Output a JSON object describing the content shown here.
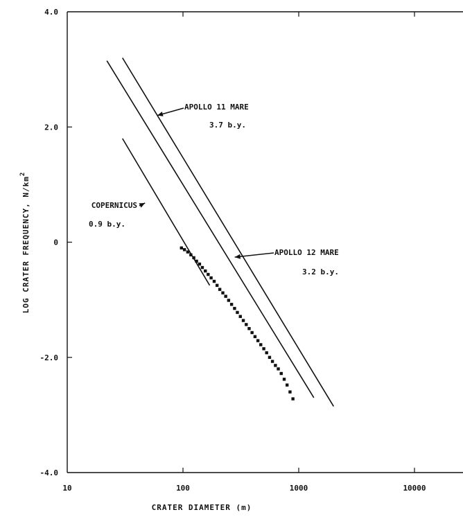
{
  "chart_data": {
    "type": "line",
    "title": "",
    "xlabel": "CRATER DIAMETER (m)",
    "ylabel": "LOG CRATER FREQUENCY, N/km",
    "ylabel_superscript": "2",
    "x_scale": "log",
    "xlim": [
      10,
      30000
    ],
    "ylim": [
      -4.0,
      4.0
    ],
    "x_ticks": [
      10,
      100,
      1000,
      10000
    ],
    "x_tick_labels": [
      "10",
      "100",
      "1000",
      "10000"
    ],
    "y_ticks": [
      4.0,
      2.0,
      0,
      -2.0,
      -4.0
    ],
    "y_tick_labels": [
      "4.0",
      "2.0",
      "0",
      "-2.0",
      "-4.0"
    ],
    "grid": false,
    "legend": "none",
    "series": [
      {
        "name": "APOLLO 11 MARE",
        "style": "line",
        "x": [
          30,
          2000
        ],
        "y": [
          3.2,
          -2.85
        ]
      },
      {
        "name": "APOLLO 12 MARE",
        "style": "line",
        "x": [
          22,
          1350
        ],
        "y": [
          3.15,
          -2.7
        ]
      },
      {
        "name": "COPERNICUS",
        "style": "line",
        "x": [
          30,
          170
        ],
        "y": [
          1.8,
          -0.75
        ]
      },
      {
        "name": "",
        "style": "points",
        "x": [
          97,
          103,
          110,
          117,
          124,
          131,
          139,
          147,
          156,
          165,
          175,
          186,
          197,
          208,
          221,
          234,
          248,
          263,
          279,
          295,
          313,
          332,
          352,
          373,
          395,
          419,
          444,
          470,
          499,
          528,
          560,
          593,
          629,
          666,
          706,
          749,
          793,
          841,
          891
        ],
        "y": [
          -0.1,
          -0.13,
          -0.17,
          -0.22,
          -0.27,
          -0.33,
          -0.38,
          -0.44,
          -0.5,
          -0.56,
          -0.62,
          -0.68,
          -0.75,
          -0.82,
          -0.88,
          -0.94,
          -1.01,
          -1.08,
          -1.15,
          -1.22,
          -1.29,
          -1.36,
          -1.43,
          -1.5,
          -1.57,
          -1.64,
          -1.71,
          -1.78,
          -1.85,
          -1.92,
          -2.0,
          -2.07,
          -2.14,
          -2.2,
          -2.28,
          -2.38,
          -2.48,
          -2.6,
          -2.72
        ]
      }
    ],
    "annotations": [
      {
        "id": "a11",
        "lines": [
          "APOLLO 11 MARE",
          "3.7 b.y."
        ],
        "arrow_to": [
          60,
          2.2
        ]
      },
      {
        "id": "a12",
        "lines": [
          "APOLLO 12 MARE",
          "3.2 b.y."
        ],
        "arrow_to": [
          280,
          -0.26
        ]
      },
      {
        "id": "cop",
        "lines": [
          "COPERNICUS",
          "0.9 b.y."
        ],
        "arrow_to": [
          47,
          0.68
        ]
      }
    ]
  }
}
